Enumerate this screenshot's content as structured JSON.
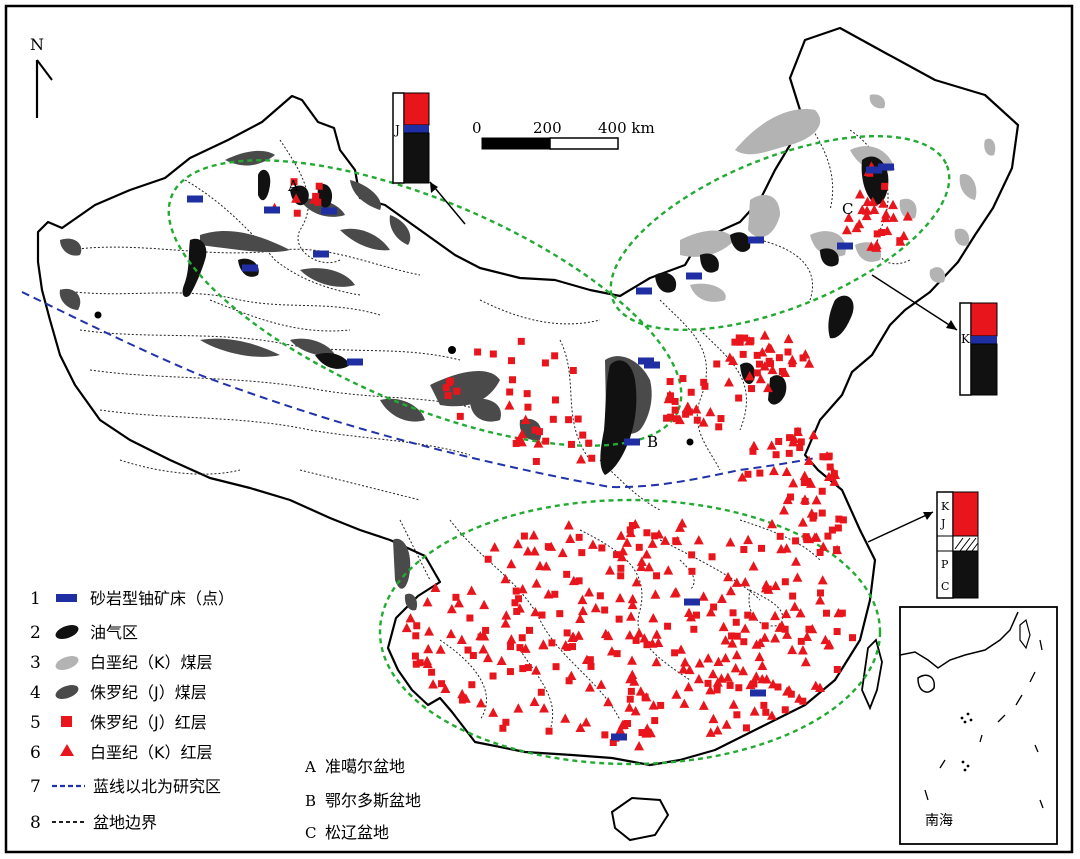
{
  "north_label": "N",
  "scale_bar": {
    "ticks": [
      "0",
      "200",
      "400 km"
    ]
  },
  "basin_labels": {
    "a": "A",
    "b": "B",
    "c": "C"
  },
  "column_jurassic": {
    "label": "J"
  },
  "column_cretaceous": {
    "label": "K"
  },
  "column_kj": {
    "labels": [
      "K",
      "J",
      "P",
      "C"
    ]
  },
  "inset": {
    "label": "南海"
  },
  "legend": [
    {
      "num": "1",
      "text": "砂岩型铀矿床（点）"
    },
    {
      "num": "2",
      "text": "油气区"
    },
    {
      "num": "3",
      "text": "白垩纪（K）煤层"
    },
    {
      "num": "4",
      "text": "侏罗纪（J）煤层"
    },
    {
      "num": "5",
      "text": "侏罗纪（J）红层"
    },
    {
      "num": "6",
      "text": "白垩纪（K）红层"
    },
    {
      "num": "7",
      "text": "蓝线以北为研究区"
    },
    {
      "num": "8",
      "text": "盆地边界"
    }
  ],
  "basin_legend": [
    {
      "key": "A",
      "text": "准噶尔盆地"
    },
    {
      "key": "B",
      "text": "鄂尔多斯盆地"
    },
    {
      "key": "C",
      "text": "松辽盆地"
    }
  ],
  "colors": {
    "uranium": "#1f2fa3",
    "red_layer": "#e8161c",
    "oil_gas": "#111111",
    "coal_k": "#b3b3b3",
    "coal_j": "#4a4a4a",
    "ellipse": "#22aa33",
    "study_line": "#2233aa"
  }
}
